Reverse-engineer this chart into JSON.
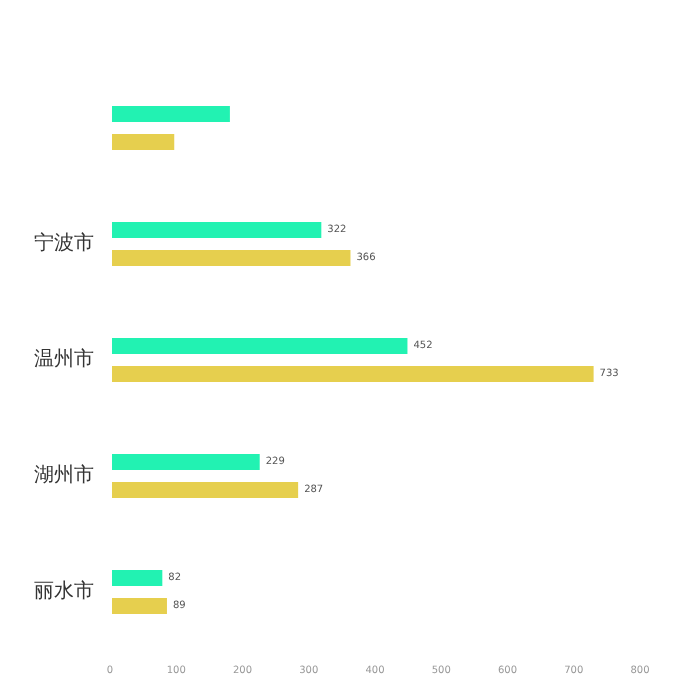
{
  "chart_data": {
    "type": "bar",
    "orientation": "horizontal",
    "categories": [
      null,
      "宁波市",
      "温州市",
      "湖州市",
      "丽水市"
    ],
    "series": [
      {
        "color": "#22f2b2",
        "values": [
          184,
          322,
          452,
          229,
          82
        ],
        "value_labels": [
          null,
          "322",
          "452",
          "229",
          "82"
        ]
      },
      {
        "color": "#e6cf4e",
        "values": [
          100,
          366,
          733,
          287,
          89
        ],
        "value_labels": [
          null,
          "366",
          "733",
          "287",
          "89"
        ]
      }
    ],
    "xlim": [
      0,
      800
    ],
    "xticks": [
      0,
      100,
      200,
      300,
      400,
      500,
      600,
      700,
      800
    ],
    "grid": false
  }
}
